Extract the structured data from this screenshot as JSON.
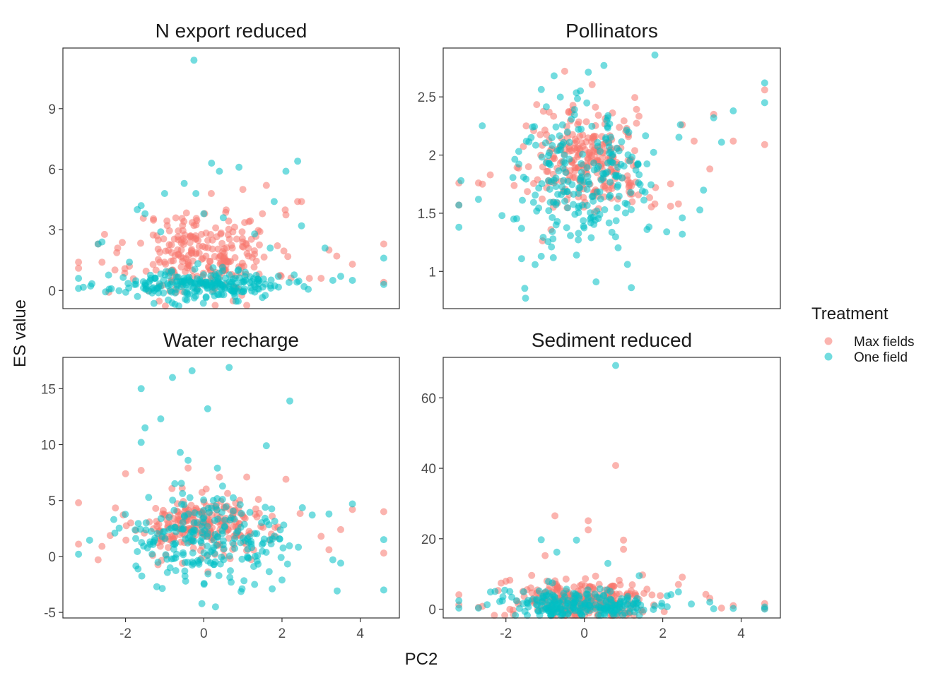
{
  "figure": {
    "xlabel": "PC2",
    "ylabel": "ES value"
  },
  "legend": {
    "title": "Treatment",
    "placement": "right",
    "items": [
      {
        "label": "Max fields",
        "color": "#F8766D"
      },
      {
        "label": "One field",
        "color": "#00BFC4"
      }
    ]
  },
  "chart_data": [
    {
      "type": "scatter",
      "title": "N export reduced",
      "xlim": [
        -3.6,
        5.0
      ],
      "ylim": [
        -0.9,
        12.0
      ],
      "xticks": [],
      "yticks": [
        0,
        3,
        6,
        9
      ],
      "show_x_ticks": false,
      "series": [
        {
          "name": "Max fields",
          "color": "#F8766D",
          "center": [
            0.0,
            1.8
          ],
          "spread": [
            0.9,
            1.1
          ],
          "n": 240,
          "seed": 11,
          "extra": [
            [
              -3.2,
              1.4
            ],
            [
              -3.2,
              1.1
            ],
            [
              -2.7,
              2.3
            ],
            [
              -2.6,
              1.4
            ],
            [
              -2.2,
              2.1
            ],
            [
              -1.9,
              1.2
            ],
            [
              1.6,
              5.2
            ],
            [
              2.4,
              4.4
            ],
            [
              2.5,
              4.4
            ],
            [
              2.7,
              0.6
            ],
            [
              3.0,
              0.6
            ],
            [
              3.2,
              2.0
            ],
            [
              3.4,
              1.7
            ],
            [
              3.8,
              1.3
            ],
            [
              4.6,
              2.3
            ],
            [
              4.6,
              0.4
            ],
            [
              1.0,
              5.0
            ],
            [
              1.5,
              3.8
            ]
          ]
        },
        {
          "name": "One field",
          "color": "#00BFC4",
          "center": [
            -0.1,
            0.25
          ],
          "spread": [
            1.1,
            0.35
          ],
          "n": 230,
          "seed": 23,
          "extra": [
            [
              -0.25,
              11.4
            ],
            [
              -3.2,
              0.1
            ],
            [
              -3.2,
              0.6
            ],
            [
              -2.7,
              2.3
            ],
            [
              -2.6,
              2.4
            ],
            [
              0.2,
              6.3
            ],
            [
              0.4,
              5.9
            ],
            [
              0.9,
              6.1
            ],
            [
              2.1,
              5.9
            ],
            [
              2.4,
              6.4
            ],
            [
              -0.5,
              5.3
            ],
            [
              -0.2,
              4.8
            ],
            [
              -1.0,
              4.8
            ],
            [
              -1.6,
              4.2
            ],
            [
              -1.7,
              4.0
            ],
            [
              -1.5,
              3.8
            ],
            [
              1.8,
              4.4
            ],
            [
              2.5,
              3.2
            ],
            [
              3.1,
              2.1
            ],
            [
              3.3,
              0.5
            ],
            [
              3.5,
              0.7
            ],
            [
              3.8,
              0.5
            ],
            [
              4.6,
              1.6
            ],
            [
              4.6,
              0.3
            ],
            [
              -1.1,
              2.9
            ],
            [
              0.0,
              3.8
            ],
            [
              0.5,
              3.6
            ],
            [
              1.3,
              2.8
            ],
            [
              1.7,
              2.1
            ],
            [
              -1.9,
              1.4
            ]
          ]
        }
      ]
    },
    {
      "type": "scatter",
      "title": "Pollinators",
      "xlim": [
        -3.6,
        5.0
      ],
      "ylim": [
        0.68,
        2.92
      ],
      "xticks": [],
      "yticks": [
        1.0,
        1.5,
        2.0,
        2.5
      ],
      "show_x_ticks": false,
      "series": [
        {
          "name": "Max fields",
          "color": "#F8766D",
          "center": [
            0.0,
            1.93
          ],
          "spread": [
            0.8,
            0.23
          ],
          "n": 250,
          "seed": 31,
          "extra": [
            [
              -3.2,
              1.76
            ],
            [
              -3.2,
              1.57
            ],
            [
              -2.7,
              1.76
            ],
            [
              -2.6,
              1.75
            ],
            [
              -2.4,
              1.83
            ],
            [
              -0.5,
              2.72
            ],
            [
              3.3,
              2.35
            ],
            [
              3.2,
              1.88
            ],
            [
              3.8,
              2.12
            ],
            [
              4.6,
              2.56
            ],
            [
              4.6,
              2.09
            ],
            [
              2.5,
              2.26
            ],
            [
              2.8,
              2.12
            ],
            [
              1.8,
              1.58
            ],
            [
              2.2,
              1.56
            ],
            [
              2.4,
              1.58
            ]
          ]
        },
        {
          "name": "One field",
          "color": "#00BFC4",
          "center": [
            0.0,
            1.8
          ],
          "spread": [
            0.95,
            0.3
          ],
          "n": 230,
          "seed": 47,
          "extra": [
            [
              -3.2,
              1.38
            ],
            [
              -3.2,
              1.57
            ],
            [
              -2.7,
              1.62
            ],
            [
              -1.6,
              1.11
            ],
            [
              -1.5,
              0.77
            ],
            [
              -1.1,
              1.13
            ],
            [
              -0.2,
              1.14
            ],
            [
              0.3,
              0.91
            ],
            [
              1.1,
              1.06
            ],
            [
              1.2,
              0.86
            ],
            [
              1.8,
              2.86
            ],
            [
              0.5,
              2.77
            ],
            [
              4.6,
              2.62
            ],
            [
              4.6,
              2.45
            ],
            [
              3.8,
              2.38
            ],
            [
              3.5,
              2.11
            ],
            [
              3.3,
              2.32
            ],
            [
              2.5,
              1.32
            ],
            [
              2.1,
              1.34
            ],
            [
              1.6,
              1.36
            ],
            [
              2.5,
              1.46
            ],
            [
              -2.1,
              1.48
            ],
            [
              -1.8,
              1.45
            ],
            [
              -0.8,
              1.28
            ]
          ]
        }
      ]
    },
    {
      "type": "scatter",
      "title": "Water recharge",
      "xlim": [
        -3.6,
        5.0
      ],
      "ylim": [
        -5.5,
        17.8
      ],
      "xticks": [
        -2,
        0,
        2,
        4
      ],
      "yticks": [
        -5,
        0,
        5,
        10,
        15
      ],
      "show_x_ticks": true,
      "series": [
        {
          "name": "Max fields",
          "color": "#F8766D",
          "center": [
            0.0,
            2.6
          ],
          "spread": [
            0.9,
            1.4
          ],
          "n": 240,
          "seed": 53,
          "extra": [
            [
              -3.2,
              4.8
            ],
            [
              -3.2,
              1.1
            ],
            [
              -2.7,
              -0.3
            ],
            [
              -2.6,
              0.9
            ],
            [
              -2.0,
              7.4
            ],
            [
              -1.6,
              7.7
            ],
            [
              -0.4,
              7.9
            ],
            [
              0.4,
              7.1
            ],
            [
              1.1,
              7.1
            ],
            [
              2.1,
              6.9
            ],
            [
              1.4,
              5.1
            ],
            [
              3.0,
              1.8
            ],
            [
              3.2,
              0.6
            ],
            [
              3.5,
              2.4
            ],
            [
              3.8,
              4.2
            ],
            [
              4.6,
              4.0
            ],
            [
              4.6,
              0.3
            ]
          ]
        },
        {
          "name": "One field",
          "color": "#00BFC4",
          "center": [
            0.0,
            1.2
          ],
          "spread": [
            1.0,
            2.0
          ],
          "n": 230,
          "seed": 67,
          "extra": [
            [
              -1.6,
              15.0
            ],
            [
              -0.8,
              16.0
            ],
            [
              -0.3,
              16.6
            ],
            [
              0.1,
              13.2
            ],
            [
              0.65,
              16.9
            ],
            [
              2.2,
              13.9
            ],
            [
              -1.5,
              11.5
            ],
            [
              -1.6,
              10.2
            ],
            [
              -1.1,
              12.3
            ],
            [
              1.6,
              9.9
            ],
            [
              -0.6,
              9.3
            ],
            [
              -0.4,
              8.6
            ],
            [
              0.35,
              7.9
            ],
            [
              0.3,
              -4.5
            ],
            [
              -1.2,
              -2.7
            ],
            [
              0.7,
              -2.3
            ],
            [
              1.3,
              -2.5
            ],
            [
              1.75,
              -2.9
            ],
            [
              2.0,
              -2.1
            ],
            [
              3.2,
              3.8
            ],
            [
              3.3,
              -0.3
            ],
            [
              3.5,
              -0.6
            ],
            [
              3.8,
              4.7
            ],
            [
              4.6,
              1.5
            ],
            [
              4.6,
              -3.0
            ],
            [
              -3.2,
              0.2
            ],
            [
              -2.3,
              3.3
            ]
          ]
        }
      ]
    },
    {
      "type": "scatter",
      "title": "Sediment reduced",
      "xlim": [
        -3.6,
        5.0
      ],
      "ylim": [
        -2.5,
        71.5
      ],
      "xticks": [
        -2,
        0,
        2,
        4
      ],
      "yticks": [
        0,
        20,
        40,
        60
      ],
      "show_x_ticks": true,
      "series": [
        {
          "name": "Max fields",
          "color": "#F8766D",
          "center": [
            0.0,
            2.5
          ],
          "spread": [
            0.95,
            3.0
          ],
          "n": 260,
          "seed": 71,
          "extra": [
            [
              0.8,
              40.8
            ],
            [
              -0.75,
              26.5
            ],
            [
              0.1,
              25.1
            ],
            [
              0.1,
              22.5
            ],
            [
              1.0,
              19.6
            ],
            [
              1.0,
              17.0
            ],
            [
              -1.9,
              8.2
            ],
            [
              -1.0,
              15.2
            ],
            [
              -3.2,
              4.1
            ],
            [
              -3.2,
              1.2
            ],
            [
              -2.7,
              0.5
            ],
            [
              -2.6,
              0.8
            ],
            [
              -2.2,
              5.3
            ],
            [
              2.5,
              9.1
            ],
            [
              2.4,
              7.0
            ],
            [
              3.1,
              4.2
            ],
            [
              3.2,
              3.1
            ],
            [
              3.5,
              0.3
            ],
            [
              3.8,
              1.0
            ],
            [
              4.6,
              1.6
            ],
            [
              4.6,
              0.2
            ]
          ]
        },
        {
          "name": "One field",
          "color": "#00BFC4",
          "center": [
            0.0,
            1.2
          ],
          "spread": [
            1.0,
            2.2
          ],
          "n": 220,
          "seed": 89,
          "extra": [
            [
              0.8,
              69.2
            ],
            [
              -1.1,
              19.7
            ],
            [
              -0.2,
              19.6
            ],
            [
              -0.7,
              16.2
            ],
            [
              -1.9,
              5.0
            ],
            [
              -3.2,
              2.4
            ],
            [
              -3.2,
              0.3
            ],
            [
              -2.7,
              0.3
            ],
            [
              2.4,
              4.9
            ],
            [
              3.2,
              2.0
            ],
            [
              3.3,
              0.1
            ],
            [
              3.8,
              0.2
            ],
            [
              4.6,
              0.6
            ],
            [
              4.6,
              0.0
            ],
            [
              0.6,
              13.0
            ],
            [
              1.4,
              9.5
            ]
          ]
        }
      ]
    }
  ]
}
